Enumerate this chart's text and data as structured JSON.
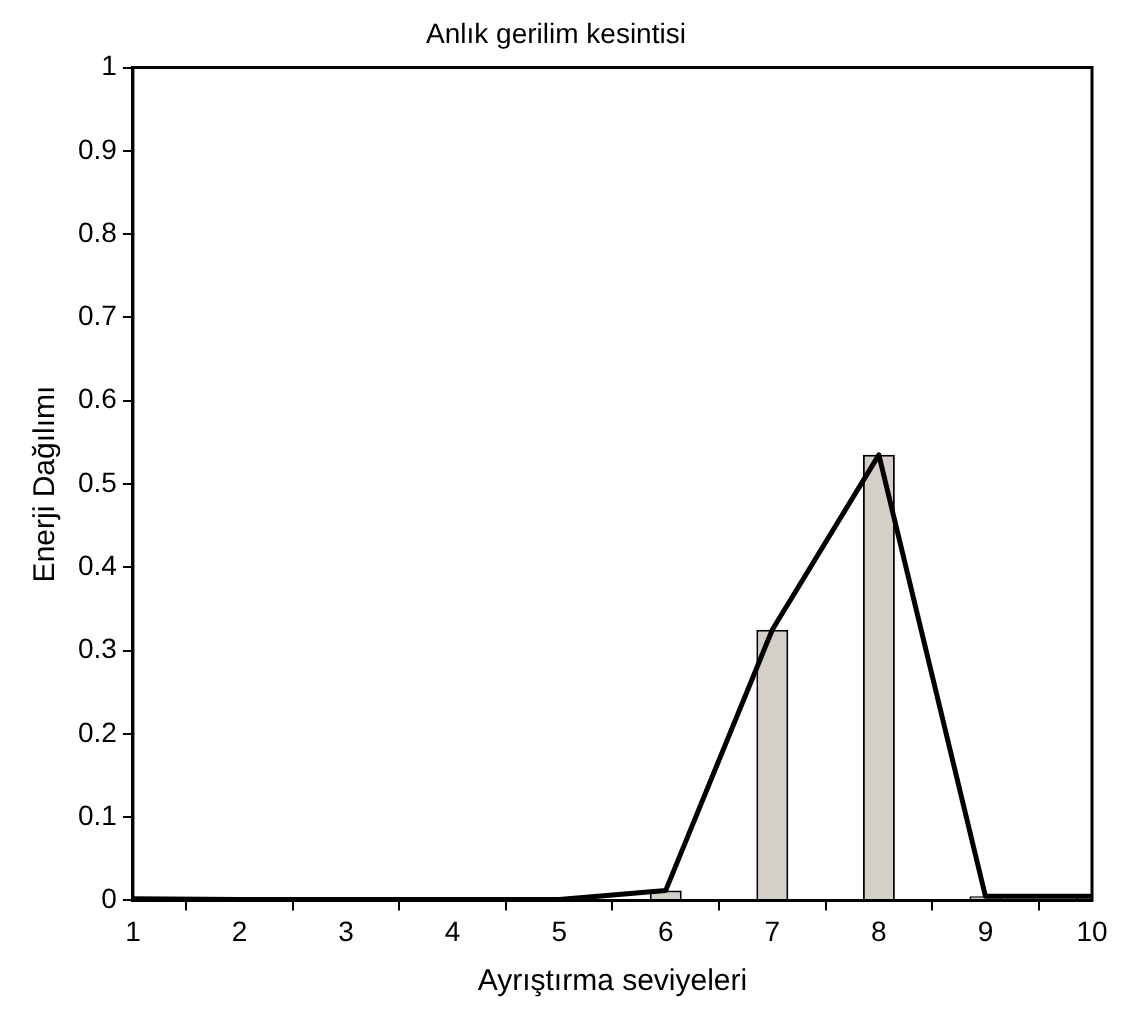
{
  "chart_data": {
    "type": "bar",
    "title": "Anlık gerilim kesintisi",
    "xlabel": "Ayrıştırma seviyeleri",
    "ylabel": "Enerji Dağılımı",
    "x": [
      1,
      2,
      3,
      4,
      5,
      6,
      7,
      8,
      9,
      10
    ],
    "series": [
      {
        "color": "#d4d0c8",
        "values": [
          0.002,
          null,
          null,
          null,
          0.001,
          0.012,
          0.325,
          0.535,
          0.005,
          0.005
        ]
      },
      {
        "type": "line",
        "color": "#000000",
        "values": [
          0.002,
          0.001,
          0.001,
          0.001,
          0.001,
          0.012,
          0.325,
          0.535,
          0.005,
          0.005
        ]
      }
    ],
    "xlim": [
      1,
      10
    ],
    "xticks": [
      1,
      2,
      3,
      4,
      5,
      6,
      7,
      8,
      9,
      10
    ],
    "ylim": [
      0,
      1
    ],
    "yticks": [
      0,
      0.1,
      0.2,
      0.3,
      0.4,
      0.5,
      0.6,
      0.7,
      0.8,
      0.9,
      1
    ],
    "grid": false,
    "legend": false,
    "marker": "none",
    "line_style": "solid"
  }
}
